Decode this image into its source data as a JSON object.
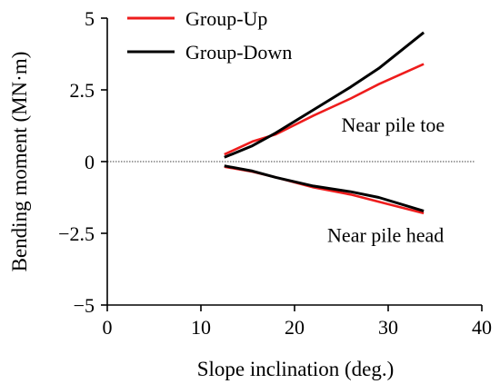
{
  "chart_data": {
    "type": "line",
    "title": "",
    "xlabel": "Slope inclination (deg.)",
    "ylabel": "Bending moment (MN·m)",
    "xlim": [
      0,
      40
    ],
    "ylim": [
      -5,
      5
    ],
    "xticks": [
      0,
      10,
      20,
      30,
      40
    ],
    "xtick_labels": [
      "0",
      "10",
      "20",
      "30",
      "40"
    ],
    "yticks": [
      -5,
      -2.5,
      0,
      2.5,
      5
    ],
    "ytick_labels": [
      "−5",
      "−2.5",
      "0",
      "2.5",
      "5"
    ],
    "grid": false,
    "legend_position": "top-left",
    "zero_reference_line": true,
    "series": [
      {
        "name": "Group-Up",
        "color": "#ee1c1c",
        "x": [
          12.5,
          15.5,
          18,
          22,
          26,
          29,
          33.8
        ],
        "y": [
          0.25,
          0.7,
          0.95,
          1.6,
          2.2,
          2.7,
          3.4
        ]
      },
      {
        "name": "Group-Up",
        "color": "#ee1c1c",
        "x": [
          12.5,
          15.5,
          18,
          22,
          26,
          29,
          33.8
        ],
        "y": [
          -0.18,
          -0.35,
          -0.55,
          -0.9,
          -1.15,
          -1.4,
          -1.8
        ]
      },
      {
        "name": "Group-Down",
        "color": "#000000",
        "x": [
          12.5,
          15.5,
          18,
          22,
          26,
          29,
          33.8
        ],
        "y": [
          0.15,
          0.55,
          1.0,
          1.8,
          2.6,
          3.25,
          4.5
        ]
      },
      {
        "name": "Group-Down",
        "color": "#000000",
        "x": [
          12.5,
          15.5,
          18,
          22,
          26,
          29,
          33.8
        ],
        "y": [
          -0.15,
          -0.33,
          -0.55,
          -0.85,
          -1.05,
          -1.25,
          -1.72
        ]
      }
    ],
    "legend": [
      {
        "label": "Group-Up",
        "color": "#ee1c1c"
      },
      {
        "label": "Group-Down",
        "color": "#000000"
      }
    ],
    "annotations": [
      {
        "text": "Near pile toe",
        "x": 25,
        "y": 1.05
      },
      {
        "text": "Near pile head",
        "x": 23.5,
        "y": -2.8
      }
    ]
  }
}
